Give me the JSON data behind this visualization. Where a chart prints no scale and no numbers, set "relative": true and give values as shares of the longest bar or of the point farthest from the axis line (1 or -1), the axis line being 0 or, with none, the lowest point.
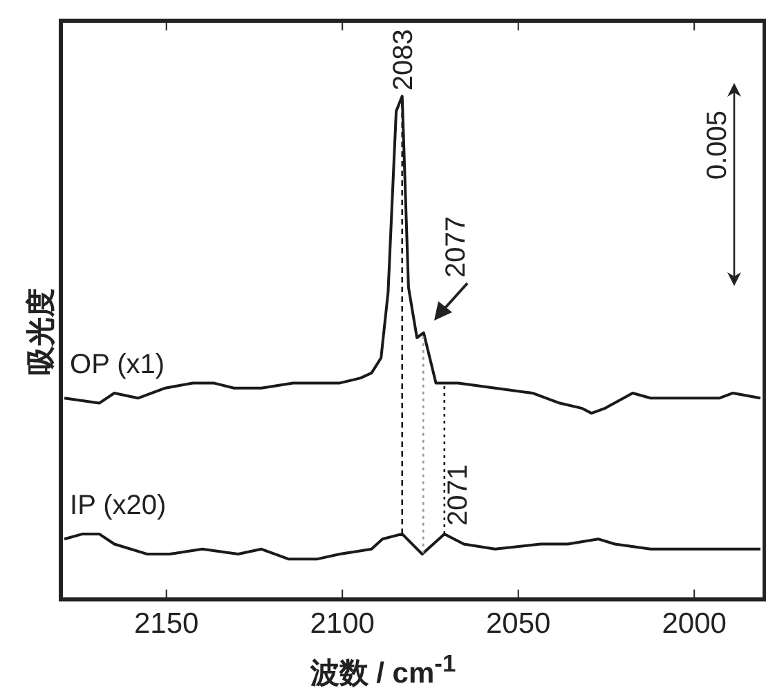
{
  "chart_data": {
    "type": "line",
    "relative": true,
    "xlabel": "波数 / cm$^{-1}$",
    "ylabel": "吸光度",
    "xlim": [
      2180,
      1980
    ],
    "xticks": [
      2150,
      2100,
      2050,
      2000
    ],
    "legend": false,
    "marker": "none",
    "line_style": "solid",
    "series": [
      {
        "name": "OP (x1)",
        "color": "#1a1a1a",
        "x": [
          2179,
          2169.1,
          2164.8,
          2158.1,
          2150.3,
          2142.5,
          2136.6,
          2130.8,
          2123,
          2114,
          2107.3,
          2100.7,
          2094.8,
          2091.7,
          2089,
          2087,
          2084.7,
          2083,
          2081.2,
          2078.8,
          2076.9,
          2073.4,
          2067.1,
          2056.6,
          2046,
          2038.2,
          2032,
          2029.2,
          2025.3,
          2017.5,
          2012.4,
          2005.8,
          1999.1,
          1992.9,
          1989,
          1981.2
        ],
        "values": [
          0.4,
          0.39,
          0.41,
          0.4,
          0.42,
          0.43,
          0.43,
          0.42,
          0.42,
          0.43,
          0.43,
          0.43,
          0.44,
          0.45,
          0.48,
          0.61,
          0.97,
          1,
          0.62,
          0.52,
          0.53,
          0.43,
          0.43,
          0.42,
          0.41,
          0.39,
          0.38,
          0.37,
          0.38,
          0.41,
          0.4,
          0.4,
          0.4,
          0.4,
          0.41,
          0.4
        ]
      },
      {
        "name": "IP (x20)",
        "color": "#1a1a1a",
        "x": [
          2179,
          2173.8,
          2169.1,
          2164.8,
          2155.4,
          2149.1,
          2139.8,
          2129.6,
          2123,
          2115.2,
          2107.3,
          2100.7,
          2091.7,
          2088.6,
          2083,
          2077.3,
          2071,
          2065.5,
          2056.6,
          2043.7,
          2035.9,
          2027.3,
          2022.6,
          2012.4,
          2004.6,
          1991.3,
          1981.2
        ],
        "values": [
          0.12,
          0.13,
          0.13,
          0.11,
          0.09,
          0.09,
          0.1,
          0.09,
          0.1,
          0.08,
          0.08,
          0.09,
          0.1,
          0.12,
          0.13,
          0.09,
          0.13,
          0.11,
          0.1,
          0.11,
          0.11,
          0.12,
          0.11,
          0.1,
          0.1,
          0.1,
          0.1
        ]
      }
    ],
    "ref_lines": [
      {
        "axis": "x",
        "value": 2083,
        "label": "2083",
        "color": "#1a1a1a",
        "line_style": "dashed"
      },
      {
        "axis": "x",
        "value": 2077,
        "label": "2077",
        "color": "#999999",
        "line_style": "dotted"
      },
      {
        "axis": "x",
        "value": 2071,
        "label": "2071",
        "color": "#1a1a1a",
        "line_style": "dotted"
      }
    ],
    "annotations": [
      "0.005"
    ]
  }
}
